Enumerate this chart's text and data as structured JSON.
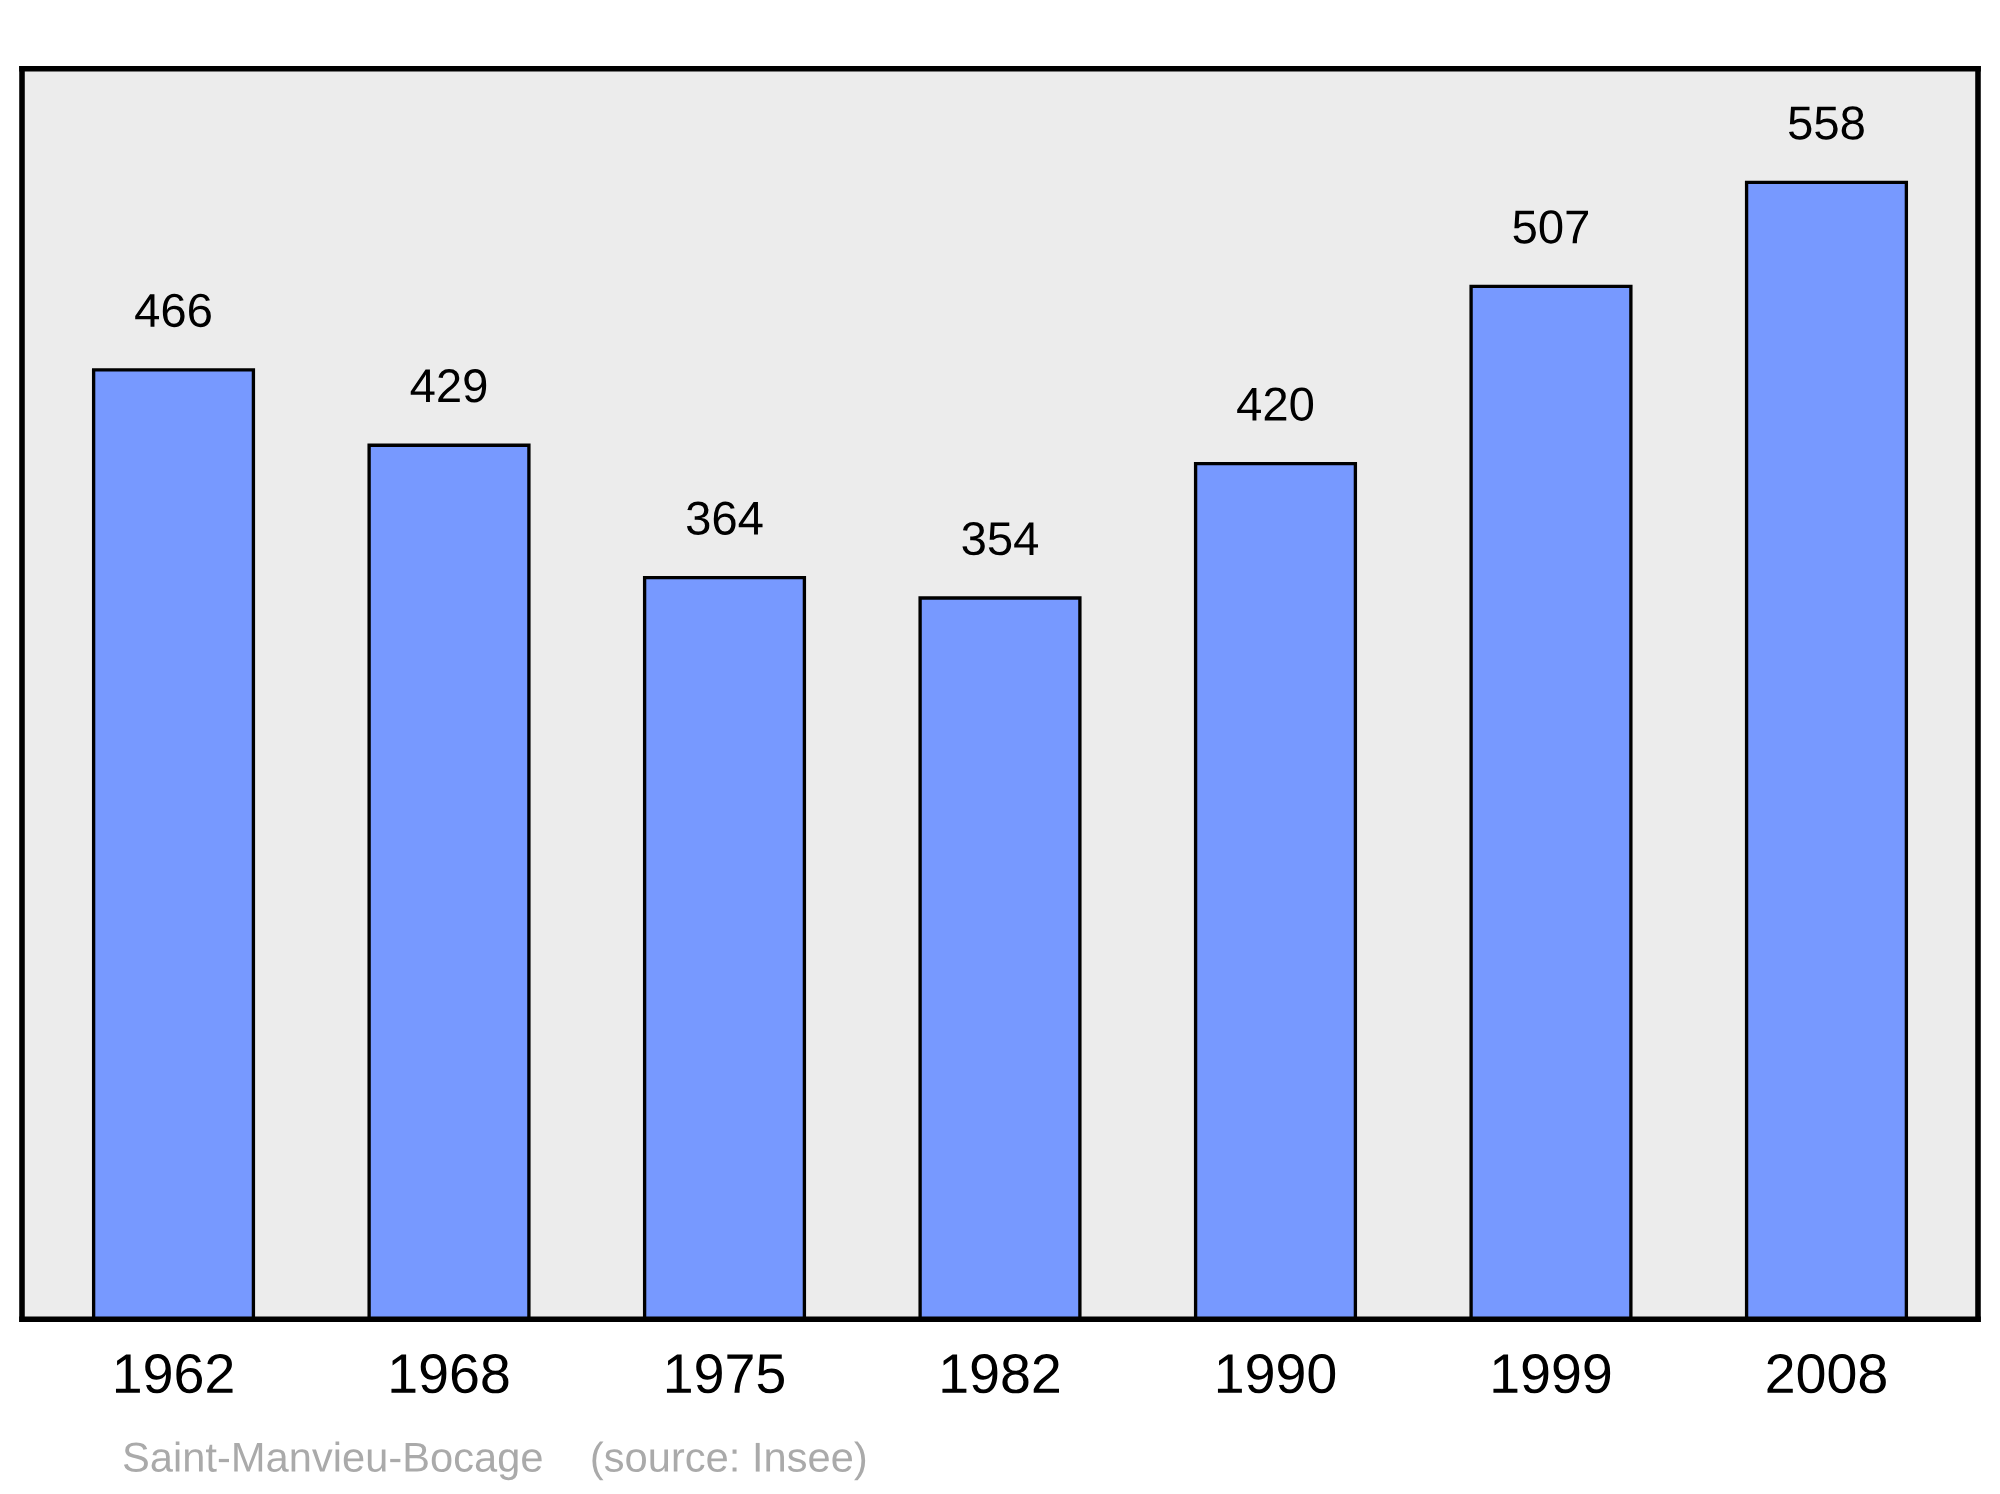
{
  "chart_data": {
    "type": "bar",
    "categories": [
      "1962",
      "1968",
      "1975",
      "1982",
      "1990",
      "1999",
      "2008"
    ],
    "values": [
      466,
      429,
      364,
      354,
      420,
      507,
      558
    ],
    "color": "#7799ff",
    "data_labels": true,
    "grid": false,
    "legend": false,
    "annotations": [
      "Saint-Manvieu-Bocage    (source: Insee)"
    ]
  }
}
